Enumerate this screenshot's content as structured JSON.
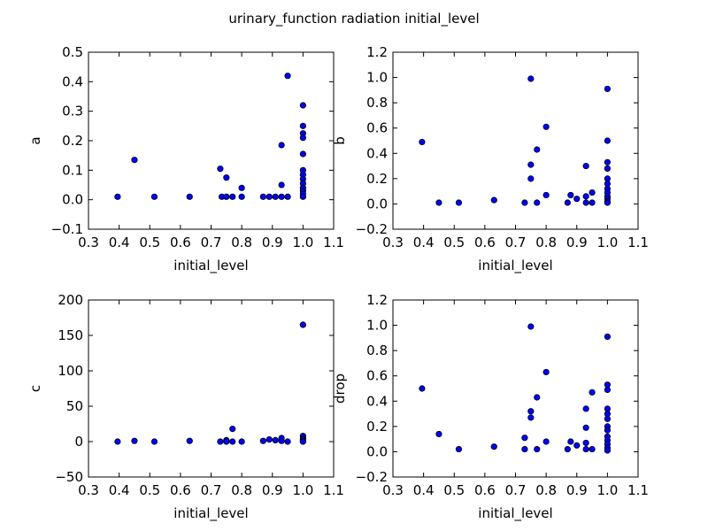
{
  "suptitle": "urinary_function radiation initial_level",
  "colors": {
    "point_fill": "#0000ff",
    "point_stroke": "#000000",
    "axes": "#000000",
    "background": "#ffffff"
  },
  "chart_data": [
    {
      "type": "scatter",
      "xlabel": "initial_level",
      "ylabel": "a",
      "xlim": [
        0.3,
        1.1
      ],
      "ylim": [
        -0.1,
        0.5
      ],
      "xticks": [
        "0.3",
        "0.4",
        "0.5",
        "0.6",
        "0.7",
        "0.8",
        "0.9",
        "1.0",
        "1.1"
      ],
      "yticks": [
        "−0.1",
        "0.0",
        "0.1",
        "0.2",
        "0.3",
        "0.4",
        "0.5"
      ],
      "points": [
        [
          0.395,
          0.01
        ],
        [
          0.45,
          0.135
        ],
        [
          0.515,
          0.01
        ],
        [
          0.63,
          0.01
        ],
        [
          0.73,
          0.105
        ],
        [
          0.735,
          0.01
        ],
        [
          0.75,
          0.075
        ],
        [
          0.75,
          0.01
        ],
        [
          0.77,
          0.01
        ],
        [
          0.8,
          0.04
        ],
        [
          0.8,
          0.01
        ],
        [
          0.87,
          0.01
        ],
        [
          0.89,
          0.01
        ],
        [
          0.91,
          0.01
        ],
        [
          0.93,
          0.185
        ],
        [
          0.93,
          0.05
        ],
        [
          0.93,
          0.01
        ],
        [
          0.95,
          0.42
        ],
        [
          0.95,
          0.01
        ],
        [
          1.0,
          0.32
        ],
        [
          1.0,
          0.25
        ],
        [
          1.0,
          0.225
        ],
        [
          1.0,
          0.21
        ],
        [
          1.0,
          0.155
        ],
        [
          1.0,
          0.1
        ],
        [
          1.0,
          0.085
        ],
        [
          1.0,
          0.07
        ],
        [
          1.0,
          0.055
        ],
        [
          1.0,
          0.04
        ],
        [
          1.0,
          0.03
        ],
        [
          1.0,
          0.02
        ],
        [
          1.0,
          0.01
        ]
      ]
    },
    {
      "type": "scatter",
      "xlabel": "initial_level",
      "ylabel": "b",
      "xlim": [
        0.3,
        1.1
      ],
      "ylim": [
        -0.2,
        1.2
      ],
      "xticks": [
        "0.3",
        "0.4",
        "0.5",
        "0.6",
        "0.7",
        "0.8",
        "0.9",
        "1.0",
        "1.1"
      ],
      "yticks": [
        "−0.2",
        "0.0",
        "0.2",
        "0.4",
        "0.6",
        "0.8",
        "1.0",
        "1.2"
      ],
      "points": [
        [
          0.395,
          0.49
        ],
        [
          0.45,
          0.01
        ],
        [
          0.515,
          0.01
        ],
        [
          0.63,
          0.03
        ],
        [
          0.73,
          0.01
        ],
        [
          0.75,
          0.99
        ],
        [
          0.75,
          0.31
        ],
        [
          0.75,
          0.2
        ],
        [
          0.77,
          0.43
        ],
        [
          0.77,
          0.01
        ],
        [
          0.8,
          0.61
        ],
        [
          0.8,
          0.07
        ],
        [
          0.87,
          0.01
        ],
        [
          0.88,
          0.07
        ],
        [
          0.9,
          0.04
        ],
        [
          0.93,
          0.3
        ],
        [
          0.93,
          0.06
        ],
        [
          0.93,
          0.01
        ],
        [
          0.95,
          0.09
        ],
        [
          0.95,
          0.01
        ],
        [
          1.0,
          0.91
        ],
        [
          1.0,
          0.5
        ],
        [
          1.0,
          0.33
        ],
        [
          1.0,
          0.28
        ],
        [
          1.0,
          0.2
        ],
        [
          1.0,
          0.16
        ],
        [
          1.0,
          0.12
        ],
        [
          1.0,
          0.09
        ],
        [
          1.0,
          0.06
        ],
        [
          1.0,
          0.04
        ],
        [
          1.0,
          0.02
        ],
        [
          1.0,
          0.01
        ]
      ]
    },
    {
      "type": "scatter",
      "xlabel": "initial_level",
      "ylabel": "c",
      "xlim": [
        0.3,
        1.1
      ],
      "ylim": [
        -50,
        200
      ],
      "xticks": [
        "0.3",
        "0.4",
        "0.5",
        "0.6",
        "0.7",
        "0.8",
        "0.9",
        "1.0",
        "1.1"
      ],
      "yticks": [
        "−50",
        "0",
        "50",
        "100",
        "150",
        "200"
      ],
      "points": [
        [
          0.395,
          0
        ],
        [
          0.45,
          1
        ],
        [
          0.515,
          0
        ],
        [
          0.63,
          1
        ],
        [
          0.73,
          0
        ],
        [
          0.75,
          2
        ],
        [
          0.75,
          0
        ],
        [
          0.77,
          18
        ],
        [
          0.77,
          0
        ],
        [
          0.8,
          0
        ],
        [
          0.87,
          1
        ],
        [
          0.89,
          3
        ],
        [
          0.91,
          2
        ],
        [
          0.93,
          5
        ],
        [
          0.93,
          1
        ],
        [
          0.95,
          0
        ],
        [
          1.0,
          165
        ],
        [
          1.0,
          8
        ],
        [
          1.0,
          5
        ],
        [
          1.0,
          3
        ],
        [
          1.0,
          1
        ],
        [
          1.0,
          0
        ]
      ]
    },
    {
      "type": "scatter",
      "xlabel": "initial_level",
      "ylabel": "drop",
      "xlim": [
        0.3,
        1.1
      ],
      "ylim": [
        -0.2,
        1.2
      ],
      "xticks": [
        "0.3",
        "0.4",
        "0.5",
        "0.6",
        "0.7",
        "0.8",
        "0.9",
        "1.0",
        "1.1"
      ],
      "yticks": [
        "−0.2",
        "0.0",
        "0.2",
        "0.4",
        "0.6",
        "0.8",
        "1.0",
        "1.2"
      ],
      "points": [
        [
          0.395,
          0.5
        ],
        [
          0.45,
          0.14
        ],
        [
          0.515,
          0.02
        ],
        [
          0.63,
          0.04
        ],
        [
          0.73,
          0.11
        ],
        [
          0.73,
          0.02
        ],
        [
          0.75,
          0.99
        ],
        [
          0.75,
          0.32
        ],
        [
          0.75,
          0.27
        ],
        [
          0.77,
          0.43
        ],
        [
          0.77,
          0.02
        ],
        [
          0.8,
          0.63
        ],
        [
          0.8,
          0.08
        ],
        [
          0.87,
          0.02
        ],
        [
          0.88,
          0.08
        ],
        [
          0.9,
          0.05
        ],
        [
          0.93,
          0.34
        ],
        [
          0.93,
          0.19
        ],
        [
          0.93,
          0.07
        ],
        [
          0.93,
          0.02
        ],
        [
          0.95,
          0.47
        ],
        [
          0.95,
          0.02
        ],
        [
          1.0,
          0.91
        ],
        [
          1.0,
          0.53
        ],
        [
          1.0,
          0.49
        ],
        [
          1.0,
          0.34
        ],
        [
          1.0,
          0.3
        ],
        [
          1.0,
          0.26
        ],
        [
          1.0,
          0.2
        ],
        [
          1.0,
          0.17
        ],
        [
          1.0,
          0.12
        ],
        [
          1.0,
          0.09
        ],
        [
          1.0,
          0.06
        ],
        [
          1.0,
          0.03
        ],
        [
          1.0,
          0.01
        ]
      ]
    }
  ]
}
